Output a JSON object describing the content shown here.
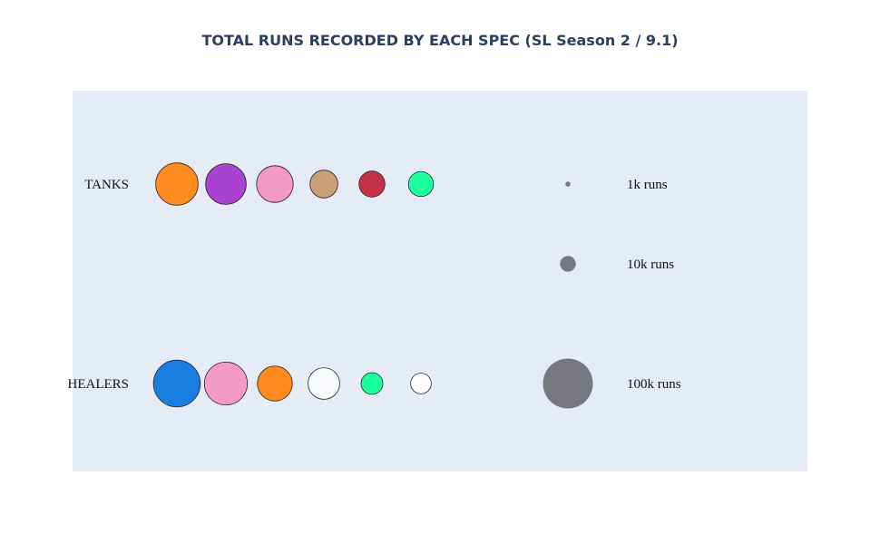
{
  "chart_data": {
    "type": "scatter",
    "title": "TOTAL RUNS RECORDED BY EACH SPEC (SL Season 2 / 9.1)",
    "xlabel": "",
    "ylabel": "",
    "grid": false,
    "colors": {
      "plot_bg": "#e5ecf6",
      "title": "#2a3f5f",
      "legend_marker": "#77787b"
    },
    "rows": [
      {
        "label": "TANKS",
        "specs": [
          {
            "color": "#ff8a1f",
            "runs": 72000
          },
          {
            "color": "#aa44d0",
            "runs": 66000
          },
          {
            "color": "#f59ac2",
            "runs": 54000
          },
          {
            "color": "#c9a077",
            "runs": 31000
          },
          {
            "color": "#c63149",
            "runs": 27000
          },
          {
            "color": "#1bff9f",
            "runs": 25000
          }
        ]
      },
      {
        "label": "HEALERS",
        "specs": [
          {
            "color": "#1a7ee0",
            "runs": 88000
          },
          {
            "color": "#f59ac2",
            "runs": 74000
          },
          {
            "color": "#ff8a1f",
            "runs": 49000
          },
          {
            "color": "#fafbff",
            "runs": 40000
          },
          {
            "color": "#1bff9f",
            "runs": 19000
          },
          {
            "color": "#ffffff",
            "runs": 17000
          }
        ]
      }
    ],
    "size_legend": [
      {
        "label": "1k runs",
        "runs": 1000
      },
      {
        "label": "10k runs",
        "runs": 10000
      },
      {
        "label": "100k runs",
        "runs": 100000
      }
    ]
  }
}
